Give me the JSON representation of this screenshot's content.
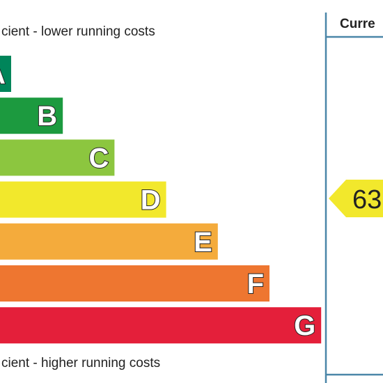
{
  "top_label": "cient - lower running costs",
  "bottom_label": "cient - higher running costs",
  "bands": [
    {
      "letter": "A",
      "color": "#00855a"
    },
    {
      "letter": "B",
      "color": "#1c9a3f"
    },
    {
      "letter": "C",
      "color": "#8cc63f"
    },
    {
      "letter": "D",
      "color": "#f2e82c"
    },
    {
      "letter": "E",
      "color": "#f4ab3c"
    },
    {
      "letter": "F",
      "color": "#ee7630"
    },
    {
      "letter": "G",
      "color": "#e41f3a"
    }
  ],
  "current": {
    "title": "Curre",
    "rating": "63",
    "color": "#f2e82c"
  }
}
